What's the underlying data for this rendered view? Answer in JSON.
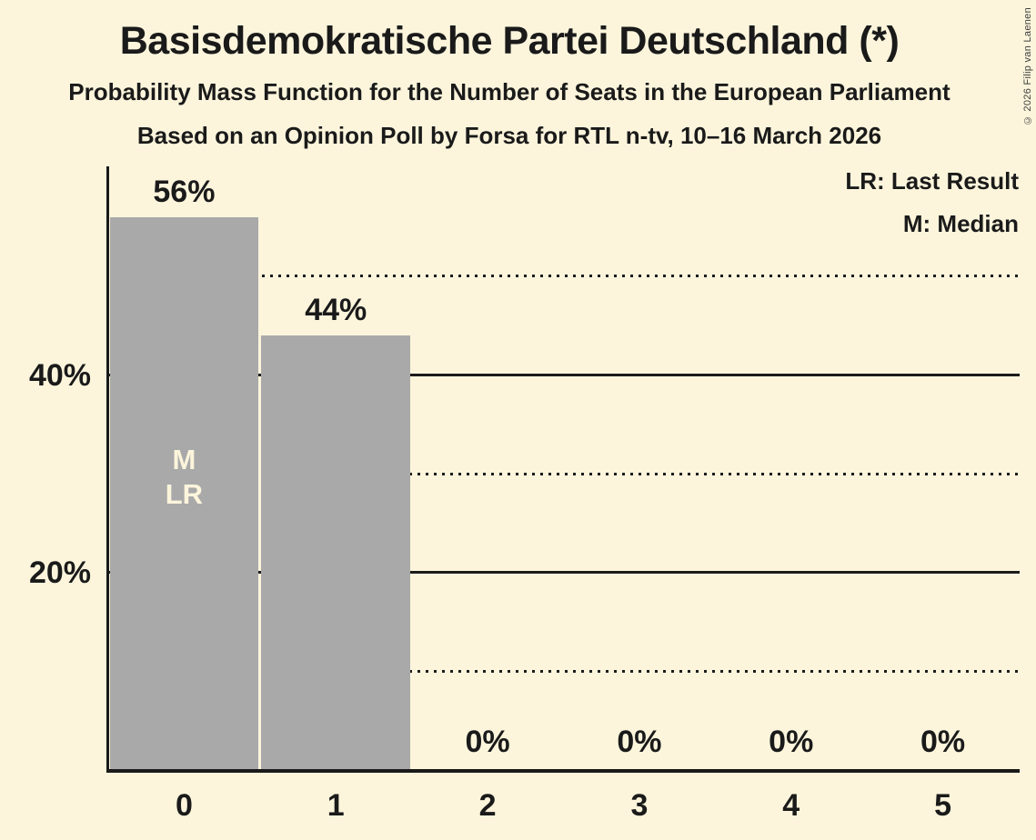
{
  "page": {
    "background": "#FCF5DC"
  },
  "header": {
    "title": "Basisdemokratische Partei Deutschland (*)",
    "subtitle": "Probability Mass Function for the Number of Seats in the European Parliament",
    "source_line": "Based on an Opinion Poll by Forsa for RTL n-tv, 10–16 March 2026"
  },
  "copyright": "© 2026 Filip van Laenen",
  "legend": {
    "items": [
      {
        "label": "LR: Last Result"
      },
      {
        "label": "M: Median"
      }
    ]
  },
  "chart_data": {
    "type": "bar",
    "title": "Basisdemokratische Partei Deutschland (*)",
    "subtitle": "Probability Mass Function for the Number of Seats in the European Parliament",
    "source": "Based on an Opinion Poll by Forsa for RTL n-tv, 10–16 March 2026",
    "categories": [
      "0",
      "1",
      "2",
      "3",
      "4",
      "5"
    ],
    "values": [
      56,
      44,
      0,
      0,
      0,
      0
    ],
    "bar_labels": [
      "56%",
      "44%",
      "0%",
      "0%",
      "0%",
      "0%"
    ],
    "xlabel": "",
    "ylabel": "",
    "ylim": [
      0,
      61
    ],
    "y_ticks": [
      {
        "value": 20,
        "label": "20%"
      },
      {
        "value": 40,
        "label": "40%"
      }
    ],
    "gridlines": {
      "solid_at": [
        20,
        40
      ],
      "dotted_at": [
        10,
        30,
        50
      ]
    },
    "bar_annotations": [
      {
        "category_index": 0,
        "lines": [
          "M",
          "LR"
        ]
      }
    ],
    "legend_notes": [
      "LR: Last Result",
      "M: Median"
    ],
    "colors": {
      "background": "#FCF5DC",
      "bar": "#A9A9A9",
      "text": "#1A1A1A",
      "annotation_text": "#FCF5DC",
      "gridline": "#1C1C1C"
    }
  }
}
